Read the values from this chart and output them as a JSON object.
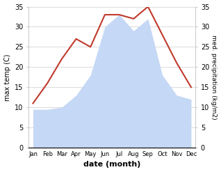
{
  "months": [
    "Jan",
    "Feb",
    "Mar",
    "Apr",
    "May",
    "Jun",
    "Jul",
    "Aug",
    "Sep",
    "Oct",
    "Nov",
    "Dec"
  ],
  "max_temp": [
    11,
    16,
    22,
    27,
    25,
    33,
    33,
    32,
    35,
    28,
    21,
    15
  ],
  "precipitation": [
    9.5,
    9.5,
    10,
    13,
    18,
    30,
    33,
    29,
    32,
    18,
    13,
    12
  ],
  "temp_color": "#c0392b",
  "precip_fill_color": "#c5d8f5",
  "ylim": [
    0,
    35
  ],
  "xlabel": "date (month)",
  "ylabel_left": "max temp (C)",
  "ylabel_right": "med. precipitation (kg/m2)",
  "bg_color": "#ffffff",
  "grid_color": "#cccccc"
}
